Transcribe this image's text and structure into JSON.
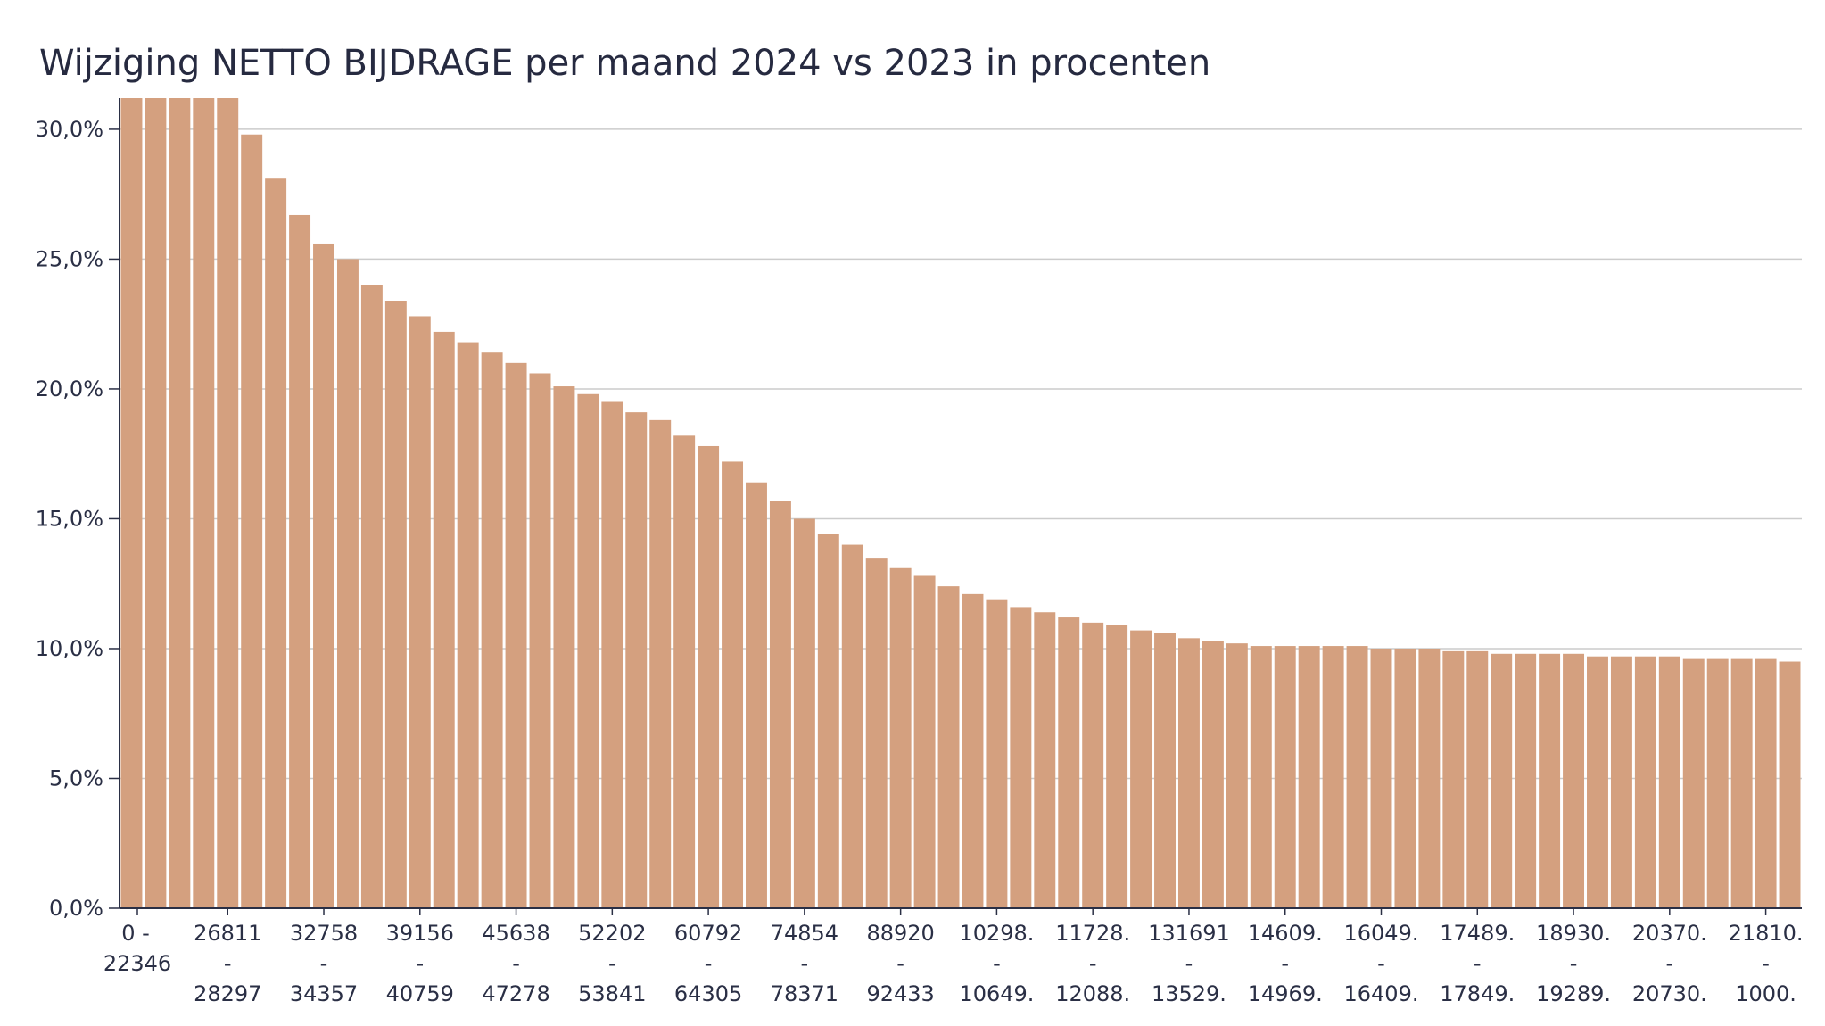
{
  "colors": {
    "bar": "#d4a07f",
    "grid": "#cccccc",
    "axis": "#2a2f45",
    "text": "#2a2f45"
  },
  "chart_data": {
    "type": "bar",
    "title": "Wijziging NETTO BIJDRAGE per maand 2024 vs 2023 in procenten",
    "xlabel": "",
    "ylabel": "",
    "ylim": [
      0,
      31.2
    ],
    "grid": true,
    "legend": "none",
    "yticks": [
      {
        "value": 0,
        "label": "0,0%"
      },
      {
        "value": 5,
        "label": "5,0%"
      },
      {
        "value": 10,
        "label": "10,0%"
      },
      {
        "value": 15,
        "label": "15,0%"
      },
      {
        "value": 20,
        "label": "20,0%"
      },
      {
        "value": 25,
        "label": "25,0%"
      },
      {
        "value": 30,
        "label": "30,0%"
      }
    ],
    "x_tick_labels": [
      {
        "index": 0,
        "lines": [
          "0 -",
          "22346",
          ""
        ]
      },
      {
        "index": 4,
        "lines": [
          "26811",
          "-",
          "28297"
        ]
      },
      {
        "index": 8,
        "lines": [
          "32758",
          "-",
          "34357"
        ]
      },
      {
        "index": 12,
        "lines": [
          "39156",
          "-",
          "40759"
        ]
      },
      {
        "index": 16,
        "lines": [
          "45638",
          "-",
          "47278"
        ]
      },
      {
        "index": 20,
        "lines": [
          "52202",
          "-",
          "53841"
        ]
      },
      {
        "index": 24,
        "lines": [
          "60792",
          "-",
          "64305"
        ]
      },
      {
        "index": 28,
        "lines": [
          "74854",
          "-",
          "78371"
        ]
      },
      {
        "index": 32,
        "lines": [
          "88920",
          "-",
          "92433"
        ]
      },
      {
        "index": 36,
        "lines": [
          "10298.",
          "-",
          "10649."
        ]
      },
      {
        "index": 40,
        "lines": [
          "11728.",
          "-",
          "12088."
        ]
      },
      {
        "index": 44,
        "lines": [
          "131691",
          "-",
          "13529."
        ]
      },
      {
        "index": 48,
        "lines": [
          "14609.",
          "-",
          "14969."
        ]
      },
      {
        "index": 52,
        "lines": [
          "16049.",
          "-",
          "16409."
        ]
      },
      {
        "index": 56,
        "lines": [
          "17489.",
          "-",
          "17849."
        ]
      },
      {
        "index": 60,
        "lines": [
          "18930.",
          "-",
          "19289."
        ]
      },
      {
        "index": 64,
        "lines": [
          "20370.",
          "-",
          "20730."
        ]
      },
      {
        "index": 68,
        "lines": [
          "21810.",
          "-",
          "1000."
        ]
      }
    ],
    "values": [
      31.5,
      31.5,
      31.5,
      31.5,
      31.5,
      29.8,
      28.1,
      26.7,
      25.6,
      25.0,
      24.0,
      23.4,
      22.8,
      22.2,
      21.8,
      21.4,
      21.0,
      20.6,
      20.1,
      19.8,
      19.5,
      19.1,
      18.8,
      18.2,
      17.8,
      17.2,
      16.4,
      15.7,
      15.0,
      14.4,
      14.0,
      13.5,
      13.1,
      12.8,
      12.4,
      12.1,
      11.9,
      11.6,
      11.4,
      11.2,
      11.0,
      10.9,
      10.7,
      10.6,
      10.4,
      10.3,
      10.2,
      10.1,
      10.1,
      10.1,
      10.1,
      10.1,
      10.0,
      10.0,
      10.0,
      9.9,
      9.9,
      9.8,
      9.8,
      9.8,
      9.8,
      9.7,
      9.7,
      9.7,
      9.7,
      9.6,
      9.6,
      9.6,
      9.6,
      9.5
    ]
  }
}
